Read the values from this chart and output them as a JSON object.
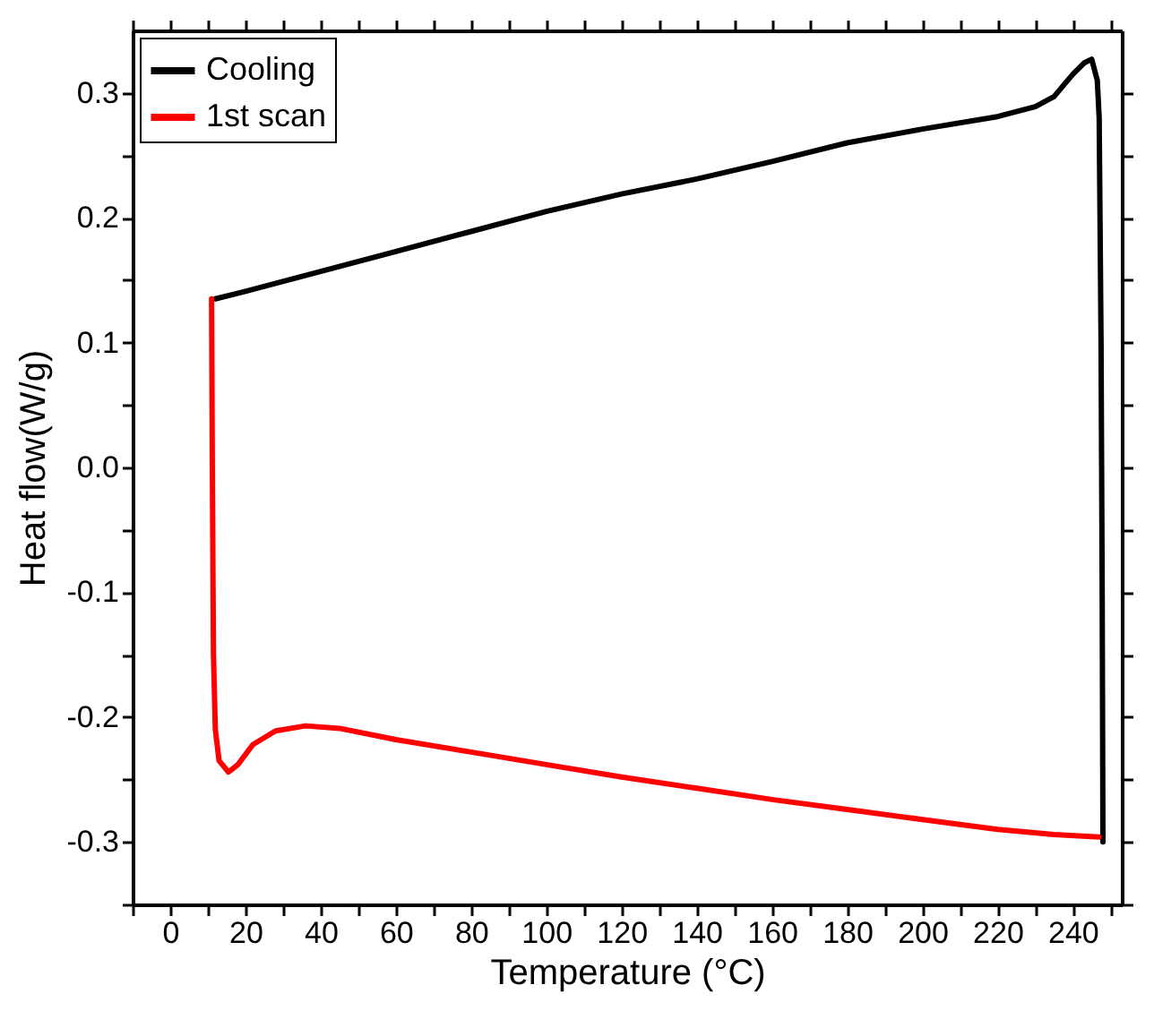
{
  "chart_data": {
    "type": "line",
    "xlabel": "Temperature (°C)",
    "ylabel": "Heat flow(W/g)",
    "xlim": [
      -10,
      253
    ],
    "ylim": [
      -0.35,
      0.35
    ],
    "xticks": [
      {
        "value": -10,
        "label": null
      },
      0,
      {
        "value": 10,
        "label": null
      },
      20,
      {
        "value": 30,
        "label": null
      },
      40,
      {
        "value": 50,
        "label": null
      },
      60,
      {
        "value": 70,
        "label": null
      },
      80,
      {
        "value": 90,
        "label": null
      },
      100,
      {
        "value": 110,
        "label": null
      },
      120,
      {
        "value": 130,
        "label": null
      },
      140,
      {
        "value": 150,
        "label": null
      },
      160,
      {
        "value": 170,
        "label": null
      },
      180,
      {
        "value": 190,
        "label": null
      },
      200,
      {
        "value": 210,
        "label": null
      },
      220,
      {
        "value": 230,
        "label": null
      },
      240,
      {
        "value": 250,
        "label": null
      }
    ],
    "yticks": [
      {
        "value": -0.35,
        "label": null
      },
      {
        "value": -0.3,
        "label": "-0.3"
      },
      {
        "value": -0.25,
        "label": null
      },
      {
        "value": -0.2,
        "label": "-0.2"
      },
      {
        "value": -0.15,
        "label": null
      },
      {
        "value": -0.1,
        "label": "-0.1"
      },
      {
        "value": -0.05,
        "label": null
      },
      {
        "value": 0,
        "label": "0.0"
      },
      {
        "value": 0.05,
        "label": null
      },
      {
        "value": 0.1,
        "label": "0.1"
      },
      {
        "value": 0.15,
        "label": null
      },
      {
        "value": 0.2,
        "label": "0.2"
      },
      {
        "value": 0.25,
        "label": null
      },
      {
        "value": 0.3,
        "label": "0.3"
      }
    ],
    "legend": "top left",
    "series": [
      {
        "name": "Cooling",
        "color": "#000000",
        "x": [
          12,
          20,
          40,
          60,
          80,
          100,
          120,
          140,
          160,
          180,
          200,
          220,
          230,
          235,
          240,
          243,
          245,
          246.5,
          247,
          247.5,
          247.8,
          248
        ],
        "values": [
          0.135,
          0.141,
          0.157,
          0.173,
          0.189,
          0.205,
          0.219,
          0.231,
          0.245,
          0.26,
          0.271,
          0.281,
          0.289,
          0.297,
          0.315,
          0.324,
          0.327,
          0.31,
          0.28,
          0.1,
          -0.1,
          -0.3
        ]
      },
      {
        "name": "1st scan",
        "color": "#ff0000",
        "x": [
          11,
          11.2,
          11.5,
          12,
          13,
          15.5,
          18,
          22,
          28,
          36,
          45,
          60,
          80,
          100,
          120,
          140,
          160,
          180,
          200,
          220,
          235,
          247
        ],
        "values": [
          0.135,
          0,
          -0.15,
          -0.21,
          -0.235,
          -0.244,
          -0.238,
          -0.222,
          -0.211,
          -0.207,
          -0.209,
          -0.218,
          -0.228,
          -0.238,
          -0.248,
          -0.257,
          -0.266,
          -0.274,
          -0.282,
          -0.29,
          -0.294,
          -0.296
        ]
      }
    ]
  }
}
